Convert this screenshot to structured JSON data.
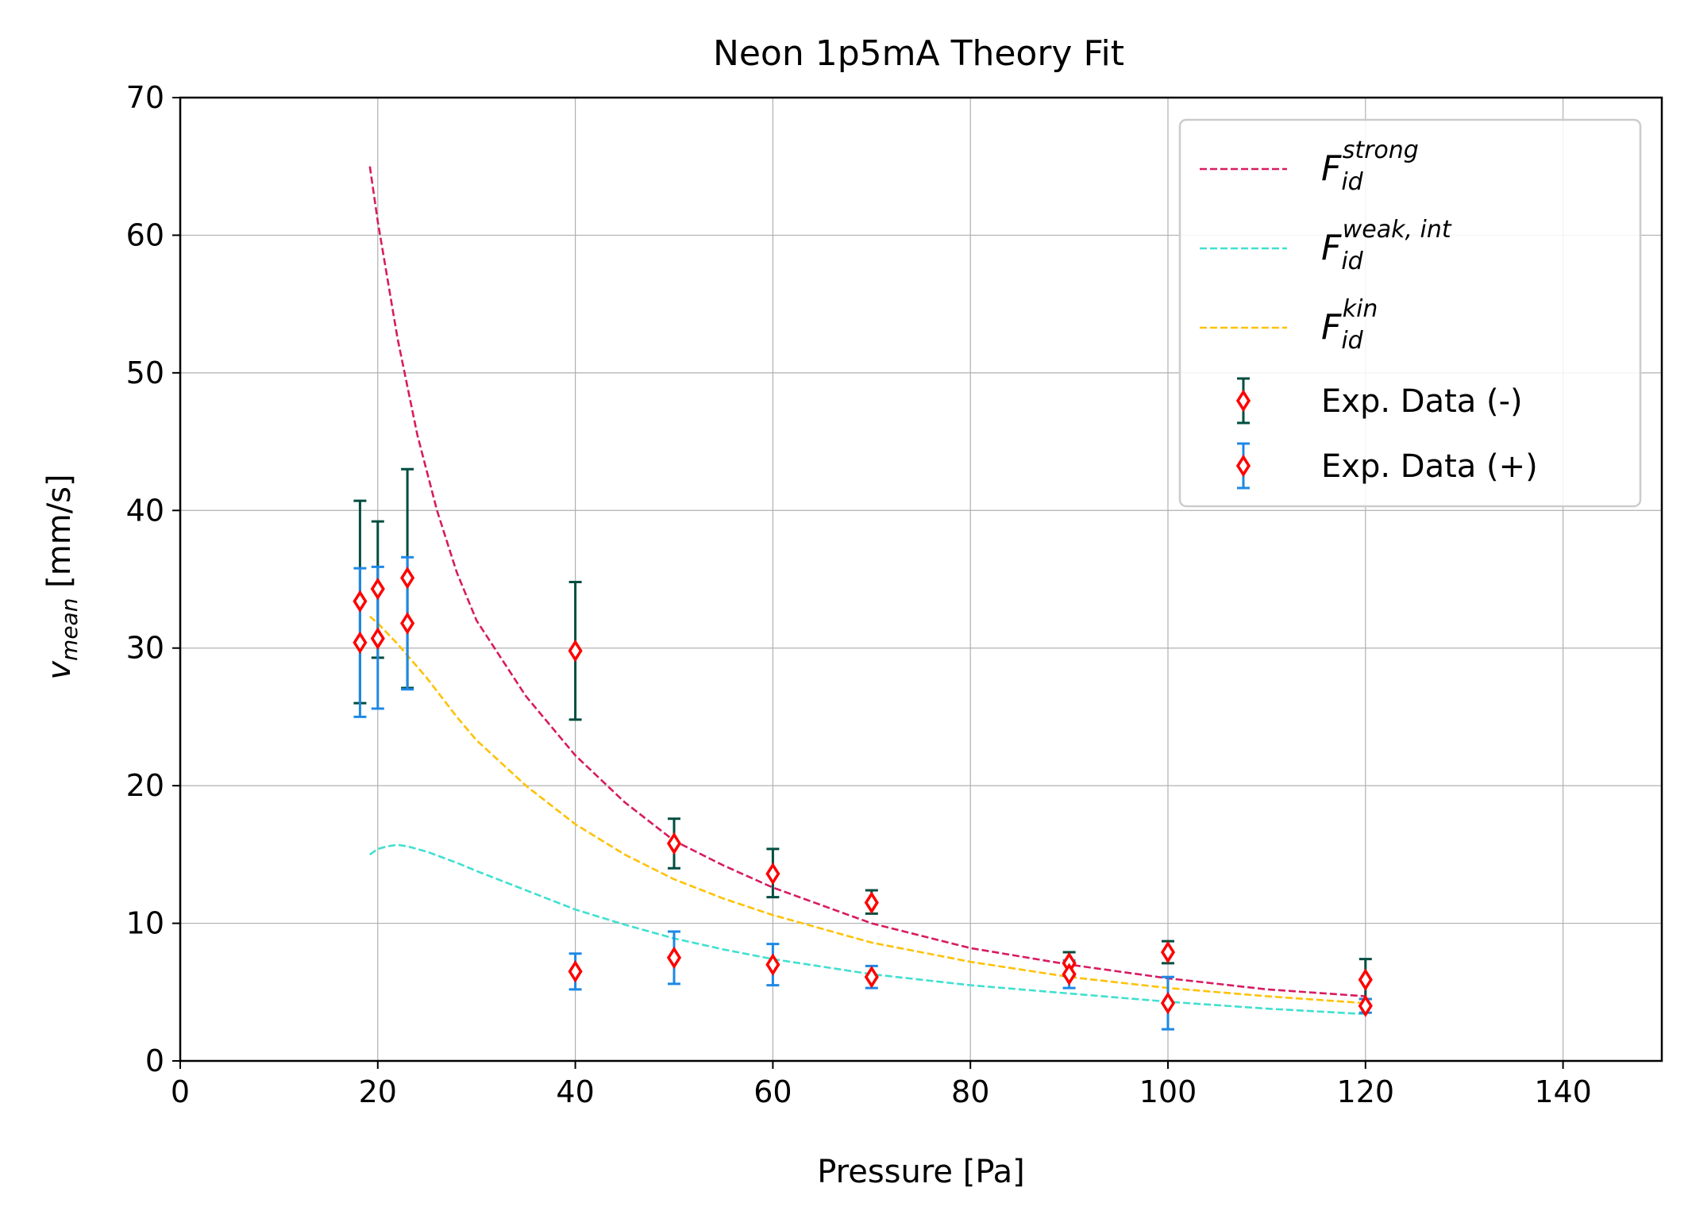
{
  "chart_data": {
    "type": "scatter",
    "title": "Neon 1p5mA Theory Fit",
    "xlabel": "Pressure [Pa]",
    "ylabel": {
      "base": "v",
      "sub": "mean",
      "unit": " [mm/s]"
    },
    "xlim": [
      0,
      150
    ],
    "ylim": [
      0,
      70
    ],
    "xticks": [
      0,
      20,
      40,
      60,
      80,
      100,
      120,
      140
    ],
    "yticks": [
      0,
      10,
      20,
      30,
      40,
      50,
      60,
      70
    ],
    "grid": true,
    "legend_position": "top-right",
    "curves": [
      {
        "id": "strong",
        "legend": {
          "base": "F",
          "sub": "id",
          "sup": "strong"
        },
        "color": "#d81b60",
        "x": [
          19.2,
          20,
          22,
          24,
          26,
          28,
          30,
          35,
          40,
          45,
          50,
          55,
          60,
          70,
          80,
          90,
          100,
          110,
          120
        ],
        "y": [
          65.0,
          61.0,
          52.5,
          45.5,
          40.0,
          35.5,
          32.0,
          26.5,
          22.2,
          18.8,
          16.0,
          14.2,
          12.6,
          10.0,
          8.2,
          7.0,
          6.0,
          5.2,
          4.7
        ]
      },
      {
        "id": "weak_int",
        "legend": {
          "base": "F",
          "sub": "id",
          "sup": "weak, int"
        },
        "color": "#40e0d0",
        "x": [
          19.2,
          20,
          21,
          22,
          23,
          25,
          28,
          30,
          35,
          40,
          45,
          50,
          55,
          60,
          70,
          80,
          90,
          100,
          110,
          120
        ],
        "y": [
          15.0,
          15.4,
          15.6,
          15.7,
          15.6,
          15.2,
          14.4,
          13.8,
          12.4,
          11.0,
          9.9,
          8.9,
          8.1,
          7.4,
          6.3,
          5.5,
          4.9,
          4.3,
          3.8,
          3.4
        ]
      },
      {
        "id": "kin",
        "legend": {
          "base": "F",
          "sub": "id",
          "sup": "kin"
        },
        "color": "#ffc107",
        "x": [
          19.2,
          20,
          22,
          25,
          28,
          30,
          35,
          40,
          45,
          50,
          55,
          60,
          70,
          80,
          90,
          100,
          110,
          120
        ],
        "y": [
          32.3,
          31.8,
          30.3,
          27.8,
          25.0,
          23.3,
          20.0,
          17.2,
          15.0,
          13.2,
          11.8,
          10.6,
          8.6,
          7.2,
          6.1,
          5.3,
          4.7,
          4.2
        ]
      }
    ],
    "series": [
      {
        "name": "Exp. Data (-)",
        "error_color": "#004d40",
        "marker_color": "#ff0000",
        "points": [
          {
            "x": 18.2,
            "y": 33.4,
            "ylow": 26.0,
            "yhigh": 40.7
          },
          {
            "x": 20.0,
            "y": 34.3,
            "ylow": 29.3,
            "yhigh": 39.2
          },
          {
            "x": 23.0,
            "y": 35.1,
            "ylow": 27.1,
            "yhigh": 43.0
          },
          {
            "x": 40.0,
            "y": 29.8,
            "ylow": 24.8,
            "yhigh": 34.8
          },
          {
            "x": 50.0,
            "y": 15.8,
            "ylow": 14.0,
            "yhigh": 17.6
          },
          {
            "x": 60.0,
            "y": 13.6,
            "ylow": 11.9,
            "yhigh": 15.4
          },
          {
            "x": 70.0,
            "y": 11.5,
            "ylow": 10.7,
            "yhigh": 12.4
          },
          {
            "x": 90.0,
            "y": 7.1,
            "ylow": 6.2,
            "yhigh": 7.9
          },
          {
            "x": 100.0,
            "y": 7.9,
            "ylow": 7.1,
            "yhigh": 8.7
          },
          {
            "x": 120.0,
            "y": 5.9,
            "ylow": 4.5,
            "yhigh": 7.4
          }
        ]
      },
      {
        "name": "Exp. Data (+)",
        "error_color": "#1e88e5",
        "marker_color": "#ff0000",
        "points": [
          {
            "x": 18.2,
            "y": 30.4,
            "ylow": 25.0,
            "yhigh": 35.8
          },
          {
            "x": 20.0,
            "y": 30.7,
            "ylow": 25.6,
            "yhigh": 35.9
          },
          {
            "x": 23.0,
            "y": 31.8,
            "ylow": 27.0,
            "yhigh": 36.6
          },
          {
            "x": 40.0,
            "y": 6.5,
            "ylow": 5.2,
            "yhigh": 7.8
          },
          {
            "x": 50.0,
            "y": 7.5,
            "ylow": 5.6,
            "yhigh": 9.4
          },
          {
            "x": 60.0,
            "y": 7.0,
            "ylow": 5.5,
            "yhigh": 8.5
          },
          {
            "x": 70.0,
            "y": 6.1,
            "ylow": 5.3,
            "yhigh": 6.9
          },
          {
            "x": 90.0,
            "y": 6.3,
            "ylow": 5.3,
            "yhigh": 7.3
          },
          {
            "x": 100.0,
            "y": 4.2,
            "ylow": 2.3,
            "yhigh": 6.1
          },
          {
            "x": 120.0,
            "y": 4.0,
            "ylow": 3.5,
            "yhigh": 4.5
          }
        ]
      }
    ]
  }
}
